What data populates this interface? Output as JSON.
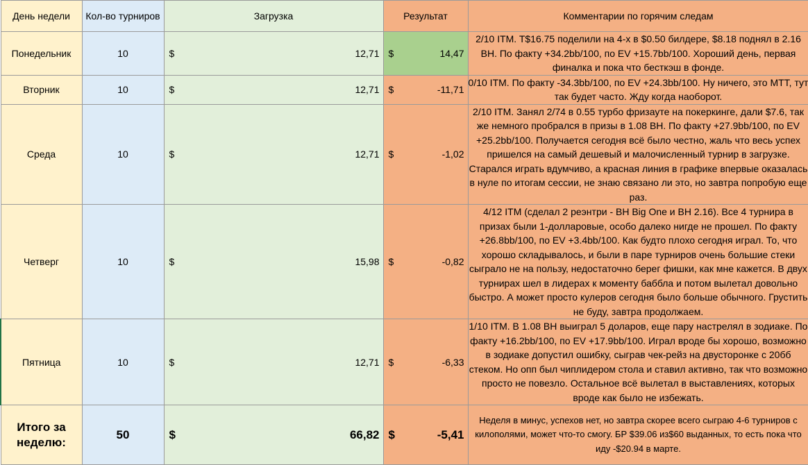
{
  "headers": {
    "day": "День недели",
    "count": "Кол-во турниров",
    "load": "Загрузка",
    "result": "Результат",
    "comment": "Комментарии по горячим следам"
  },
  "currency": "$",
  "rows": [
    {
      "day": "Понедельник",
      "count": "10",
      "load": "12,71",
      "result": "14,47",
      "result_positive": true,
      "comment": "2/10 ITM. T$16.75 поделили на 4-х  в $0.50 билдере, $8.18 поднял в 2.16 BH. По факту +34.2bb/100, по EV +15.7bb/100.  Хороший день, первая финалка и пока что бесткэш в фонде."
    },
    {
      "day": "Вторник",
      "count": "10",
      "load": "12,71",
      "result": "-11,71",
      "result_positive": false,
      "comment": "0/10 ITM. По факту -34.3bb/100, по EV +24.3bb/100. Ну ничего, это МТТ, тут так будет часто. Жду когда наоборот."
    },
    {
      "day": "Среда",
      "count": "10",
      "load": "12,71",
      "result": "-1,02",
      "result_positive": false,
      "comment": "2/10 ITM. Занял 2/74 в 0.55 турбо фризауте на покеркинге, дали $7.6, так же немного пробрался в призы в 1.08 BH. По факту +27.9bb/100, по EV +25.2bb/100. Получается сегодня всё было честно, жаль что весь успех пришелся на самый дешевый и малочисленный турнир в загрузке. Старался играть вдумчиво, а красная линия в графике впервые оказалась в нуле по итогам сессии, не знаю связано ли это, но завтра попробую еще раз."
    },
    {
      "day": "Четверг",
      "count": "10",
      "load": "15,98",
      "result": "-0,82",
      "result_positive": false,
      "comment": "4/12 ITM (сделал 2 реэнтри - BH Big One и BH 2.16). Все 4 турнира в призах были 1-долларовые, особо далеко нигде не прошел. По факту +26.8bb/100, по EV +3.4bb/100. Как будто плохо сегодня играл. То, что хорошо складывалось, и были в паре турниров очень большие стеки сыграло не на пользу, недостаточно берег фишки, как мне кажется. В двух турнирах шел в лидерах к моменту баббла и потом вылетал довольно быстро. А может просто кулеров сегодня было больше обычного. Грустить не буду, завтра продолжаем."
    },
    {
      "day": "Пятница",
      "count": "10",
      "load": "12,71",
      "result": "-6,33",
      "result_positive": false,
      "comment": "1/10 ITM. В 1.08 BH выиграл 5 доларов, еще пару настрелял в зодиаке. По факту +16.2bb/100, по EV +17.9bb/100. Играл вроде бы хорошо, возможно в зодиаке допустил ошибку, сыграв чек-рейз на двусторонке с 20бб стеком. Но опп был чиплидером стола и ставил активно, так что возможно просто не повезло. Остальное всё вылетал в выставлениях, которых вроде как было не избежать."
    }
  ],
  "total": {
    "label": "Итого за неделю:",
    "count": "50",
    "load": "66,82",
    "result": "-5,41",
    "comment": "Неделя в минус, успехов нет, но завтра скорее всего сыграю 4-6 турниров с килополями, может что-то смогу. БР $39.06 из$60 выданных, то есть пока что иду -$20.94 в марте."
  },
  "colors": {
    "day_bg": "#fff2cc",
    "count_bg": "#ddebf7",
    "load_bg": "#e2efda",
    "positive_bg": "#a9d08e",
    "negative_bg": "#f4b084"
  }
}
